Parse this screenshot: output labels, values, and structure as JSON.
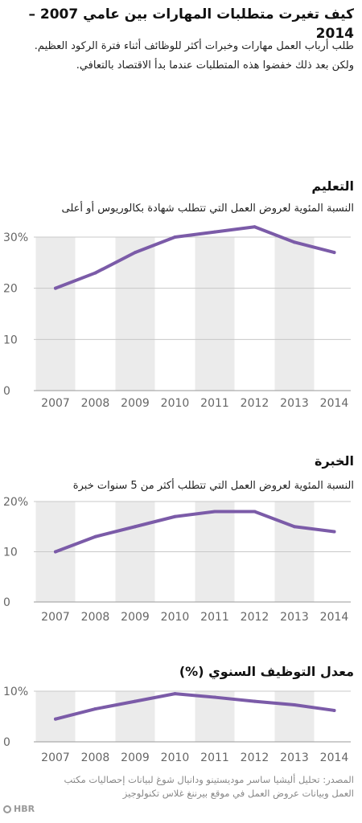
{
  "title": "كيف تغيرت متطلبات المهارات بين عامي 2007 – 2014",
  "subtitle": "طلب أرباب العمل مهارات وخبرات أكثر للوظائف أثناء فترة الركود العظيم. ولكن بعد ذلك خفضوا هذه المتطلبات عندما بدأ الاقتصاد بالتعافي.",
  "source": "المصدر: تحليل أليشيا ساسر موديستينو ودانيال شوغ لبيانات إحصاليات مكتب العمل وبيانات عروض العمل في موقع بيرننغ غلاس تكنولوجيز",
  "brand": "HBR",
  "colors": {
    "line": "#7b5ba8",
    "band": "#ebebeb",
    "tick": "#666666"
  },
  "chart_data": [
    {
      "type": "line",
      "title": "التعليم",
      "subtitle": "النسبة المئوية لعروض العمل التي تتطلب شهادة بكالوريوس أو أعلى",
      "x": [
        "2007",
        "2008",
        "2009",
        "2010",
        "2011",
        "2012",
        "2013",
        "2014"
      ],
      "values": [
        20,
        23,
        27,
        30,
        31,
        32,
        29,
        27
      ],
      "ylim": [
        0,
        30
      ],
      "yticks": [
        "0",
        "10",
        "20",
        "30%"
      ]
    },
    {
      "type": "line",
      "title": "الخبرة",
      "subtitle": "النسبة المئوية لعروض العمل التي تتطلب أكثر من 5 سنوات خبرة",
      "x": [
        "2007",
        "2008",
        "2009",
        "2010",
        "2011",
        "2012",
        "2013",
        "2014"
      ],
      "values": [
        10,
        13,
        15,
        17,
        18,
        18,
        15,
        14
      ],
      "ylim": [
        0,
        20
      ],
      "yticks": [
        "0",
        "10",
        "20%"
      ]
    },
    {
      "type": "line",
      "title": "معدل التوظيف السنوي (%)",
      "subtitle": "",
      "x": [
        "2007",
        "2008",
        "2009",
        "2010",
        "2011",
        "2012",
        "2013",
        "2014"
      ],
      "values": [
        4.5,
        6.5,
        8,
        9.5,
        8.8,
        8,
        7.3,
        6.2
      ],
      "ylim": [
        0,
        10
      ],
      "yticks": [
        "0",
        "10%"
      ]
    }
  ]
}
